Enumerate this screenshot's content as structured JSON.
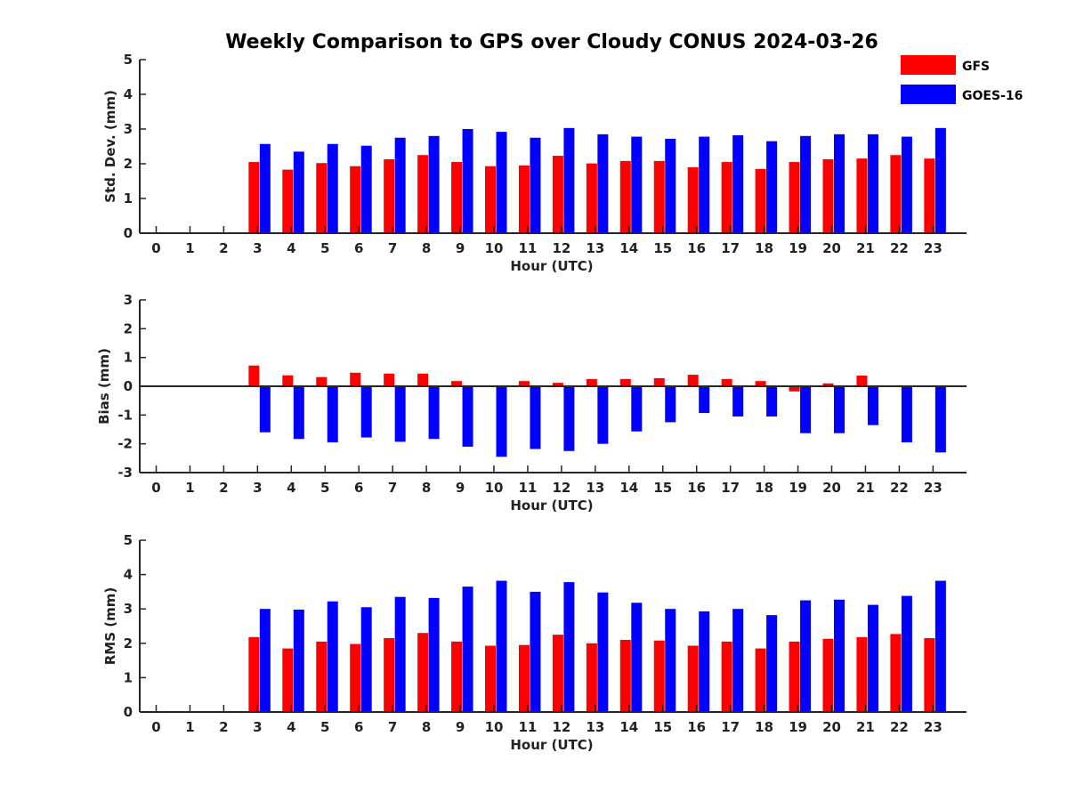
{
  "figure": {
    "title": "Weekly Comparison to GPS over Cloudy CONUS 2024-03-26"
  },
  "legend": {
    "placement": "top-right",
    "items": [
      {
        "label": "GFS",
        "color": "#ff0000"
      },
      {
        "label": "GOES-16",
        "color": "#0000ff"
      }
    ]
  },
  "chart_data": [
    {
      "type": "bar",
      "title": "Weekly Comparison to GPS over Cloudy CONUS 2024-03-26",
      "xlabel": "Hour (UTC)",
      "ylabel": "Std. Dev. (mm)",
      "ylim": [
        0,
        5
      ],
      "yticks": [
        0,
        1,
        2,
        3,
        4,
        5
      ],
      "categories": [
        "0",
        "1",
        "2",
        "3",
        "4",
        "5",
        "6",
        "7",
        "8",
        "9",
        "10",
        "11",
        "12",
        "13",
        "14",
        "15",
        "16",
        "17",
        "18",
        "19",
        "20",
        "21",
        "22",
        "23"
      ],
      "grid": false,
      "series": [
        {
          "name": "GFS",
          "color": "#ff0000",
          "values": [
            null,
            null,
            null,
            2.05,
            1.83,
            2.02,
            1.93,
            2.13,
            2.25,
            2.05,
            1.93,
            1.95,
            2.23,
            2.01,
            2.08,
            2.08,
            1.9,
            2.05,
            1.85,
            2.05,
            2.13,
            2.15,
            2.25,
            2.15
          ]
        },
        {
          "name": "GOES-16",
          "color": "#0000ff",
          "values": [
            null,
            null,
            null,
            2.57,
            2.35,
            2.57,
            2.52,
            2.75,
            2.8,
            3.0,
            2.92,
            2.75,
            3.03,
            2.85,
            2.78,
            2.72,
            2.78,
            2.82,
            2.65,
            2.8,
            2.85,
            2.85,
            2.78,
            3.03
          ]
        }
      ]
    },
    {
      "type": "bar",
      "xlabel": "Hour (UTC)",
      "ylabel": "Bias (mm)",
      "ylim": [
        -3,
        3
      ],
      "yticks": [
        -3,
        -2,
        -1,
        0,
        1,
        2,
        3
      ],
      "categories": [
        "0",
        "1",
        "2",
        "3",
        "4",
        "5",
        "6",
        "7",
        "8",
        "9",
        "10",
        "11",
        "12",
        "13",
        "14",
        "15",
        "16",
        "17",
        "18",
        "19",
        "20",
        "21",
        "22",
        "23"
      ],
      "grid": false,
      "series": [
        {
          "name": "GFS",
          "color": "#ff0000",
          "values": [
            null,
            null,
            null,
            0.72,
            0.38,
            0.32,
            0.47,
            0.44,
            0.44,
            0.18,
            0.0,
            0.18,
            0.12,
            0.25,
            0.25,
            0.28,
            0.4,
            0.25,
            0.18,
            -0.18,
            0.1,
            0.37,
            -0.03,
            -0.03
          ]
        },
        {
          "name": "GOES-16",
          "color": "#0000ff",
          "values": [
            null,
            null,
            null,
            -1.6,
            -1.83,
            -1.95,
            -1.78,
            -1.93,
            -1.83,
            -2.1,
            -2.45,
            -2.18,
            -2.25,
            -2.0,
            -1.57,
            -1.25,
            -0.93,
            -1.05,
            -1.05,
            -1.63,
            -1.63,
            -1.35,
            -1.95,
            -2.3
          ]
        }
      ]
    },
    {
      "type": "bar",
      "xlabel": "Hour (UTC)",
      "ylabel": "RMS (mm)",
      "ylim": [
        0,
        5
      ],
      "yticks": [
        0,
        1,
        2,
        3,
        4,
        5
      ],
      "categories": [
        "0",
        "1",
        "2",
        "3",
        "4",
        "5",
        "6",
        "7",
        "8",
        "9",
        "10",
        "11",
        "12",
        "13",
        "14",
        "15",
        "16",
        "17",
        "18",
        "19",
        "20",
        "21",
        "22",
        "23"
      ],
      "grid": false,
      "series": [
        {
          "name": "GFS",
          "color": "#ff0000",
          "values": [
            null,
            null,
            null,
            2.18,
            1.85,
            2.05,
            1.98,
            2.15,
            2.3,
            2.05,
            1.93,
            1.95,
            2.25,
            2.0,
            2.1,
            2.08,
            1.93,
            2.05,
            1.85,
            2.05,
            2.13,
            2.18,
            2.27,
            2.15
          ]
        },
        {
          "name": "GOES-16",
          "color": "#0000ff",
          "values": [
            null,
            null,
            null,
            3.0,
            2.98,
            3.22,
            3.05,
            3.35,
            3.32,
            3.65,
            3.82,
            3.5,
            3.78,
            3.48,
            3.18,
            3.0,
            2.93,
            3.0,
            2.82,
            3.25,
            3.27,
            3.12,
            3.38,
            3.82
          ]
        }
      ]
    }
  ]
}
